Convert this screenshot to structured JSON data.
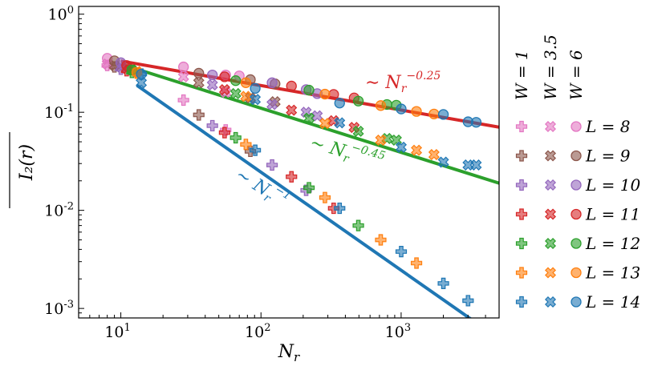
{
  "chart_data": {
    "type": "scatter",
    "xscale": "log",
    "yscale": "log",
    "xlim": [
      5,
      5000
    ],
    "ylim": [
      0.0008,
      1.2
    ],
    "xlabel_base": "N",
    "xlabel_sub": "r",
    "ylabel": "I₂(r)",
    "x_ticks": [
      {
        "value": 10,
        "base": "10",
        "exp": "1"
      },
      {
        "value": 100,
        "base": "10",
        "exp": "2"
      },
      {
        "value": 1000,
        "base": "10",
        "exp": "3"
      }
    ],
    "y_ticks": [
      {
        "value": 1,
        "base": "10",
        "exp": "0"
      },
      {
        "value": 0.1,
        "base": "10",
        "exp": "-1"
      },
      {
        "value": 0.01,
        "base": "10",
        "exp": "-2"
      },
      {
        "value": 0.001,
        "base": "10",
        "exp": "-3"
      }
    ],
    "fit_lines": [
      {
        "exponent": -0.25,
        "color": "#d62728",
        "anchor": [
          10,
          0.333
        ],
        "x_range": [
          10,
          5000
        ],
        "label_prefix": "∼ N",
        "label_sub": "r",
        "label_exp": "−0.25"
      },
      {
        "exponent": -0.45,
        "color": "#2ca02c",
        "anchor": [
          10,
          0.31
        ],
        "x_range": [
          10,
          5000
        ],
        "label_prefix": "∼ N",
        "label_sub": "r",
        "label_exp": "−0.45"
      },
      {
        "exponent": -1,
        "color": "#1f77b4",
        "anchor": [
          10,
          0.245
        ],
        "x_range": [
          13,
          5000
        ],
        "label_prefix": "∼ N",
        "label_sub": "r",
        "label_exp": "−1"
      }
    ],
    "legend": {
      "columns": [
        {
          "W": "1",
          "label": "W = 1",
          "marker": "plus"
        },
        {
          "W": "3.5",
          "label": "W = 3.5",
          "marker": "cross"
        },
        {
          "W": "6",
          "label": "W = 6",
          "marker": "circle"
        }
      ],
      "rows": [
        {
          "L": "8",
          "label": "L = 8",
          "color": "#e377c2"
        },
        {
          "L": "9",
          "label": "L = 9",
          "color": "#8c564b"
        },
        {
          "L": "10",
          "label": "L = 10",
          "color": "#9467bd"
        },
        {
          "L": "11",
          "label": "L = 11",
          "color": "#d62728"
        },
        {
          "L": "12",
          "label": "L = 12",
          "color": "#2ca02c"
        },
        {
          "L": "13",
          "label": "L = 13",
          "color": "#ff7f0e"
        },
        {
          "L": "14",
          "label": "L = 14",
          "color": "#1f77b4"
        }
      ]
    },
    "series": [
      {
        "W": "1",
        "L": "8",
        "marker": "plus",
        "color": "#e377c2",
        "x": [
          8,
          28,
          56
        ],
        "y": [
          0.3,
          0.133,
          0.066
        ]
      },
      {
        "W": "1",
        "L": "9",
        "marker": "plus",
        "color": "#8c564b",
        "x": [
          9,
          36,
          84
        ],
        "y": [
          0.29,
          0.094,
          0.04
        ]
      },
      {
        "W": "1",
        "L": "10",
        "marker": "plus",
        "color": "#9467bd",
        "x": [
          10,
          45,
          120,
          210
        ],
        "y": [
          0.275,
          0.073,
          0.029,
          0.016
        ]
      },
      {
        "W": "1",
        "L": "11",
        "marker": "plus",
        "color": "#d62728",
        "x": [
          11,
          55,
          165,
          330
        ],
        "y": [
          0.265,
          0.062,
          0.022,
          0.0105
        ]
      },
      {
        "W": "1",
        "L": "12",
        "marker": "plus",
        "color": "#2ca02c",
        "x": [
          12,
          66,
          220,
          495
        ],
        "y": [
          0.255,
          0.055,
          0.017,
          0.007
        ]
      },
      {
        "W": "1",
        "L": "13",
        "marker": "plus",
        "color": "#ff7f0e",
        "x": [
          13,
          78,
          286,
          715,
          1287
        ],
        "y": [
          0.25,
          0.047,
          0.0135,
          0.005,
          0.0029
        ]
      },
      {
        "W": "1",
        "L": "14",
        "marker": "plus",
        "color": "#1f77b4",
        "x": [
          14,
          91,
          364,
          1001,
          2002,
          3003
        ],
        "y": [
          0.245,
          0.041,
          0.0105,
          0.0038,
          0.0018,
          0.0012
        ]
      },
      {
        "W": "3.5",
        "L": "8",
        "marker": "cross",
        "color": "#e377c2",
        "x": [
          8,
          28,
          56
        ],
        "y": [
          0.31,
          0.23,
          0.16
        ]
      },
      {
        "W": "3.5",
        "L": "9",
        "marker": "cross",
        "color": "#8c564b",
        "x": [
          9,
          36,
          84,
          126
        ],
        "y": [
          0.3,
          0.2,
          0.14,
          0.128
        ]
      },
      {
        "W": "3.5",
        "L": "10",
        "marker": "cross",
        "color": "#9467bd",
        "x": [
          10,
          45,
          120,
          210,
          252
        ],
        "y": [
          0.29,
          0.19,
          0.12,
          0.1,
          0.092
        ]
      },
      {
        "W": "3.5",
        "L": "11",
        "marker": "cross",
        "color": "#d62728",
        "x": [
          11,
          55,
          165,
          330,
          462
        ],
        "y": [
          0.28,
          0.17,
          0.105,
          0.082,
          0.07
        ]
      },
      {
        "W": "3.5",
        "L": "12",
        "marker": "cross",
        "color": "#2ca02c",
        "x": [
          12,
          66,
          220,
          495,
          792,
          924
        ],
        "y": [
          0.27,
          0.155,
          0.087,
          0.064,
          0.054,
          0.052
        ]
      },
      {
        "W": "3.5",
        "L": "13",
        "marker": "cross",
        "color": "#ff7f0e",
        "x": [
          13,
          78,
          286,
          715,
          1287,
          1716
        ],
        "y": [
          0.26,
          0.145,
          0.077,
          0.052,
          0.041,
          0.037
        ]
      },
      {
        "W": "3.5",
        "L": "14",
        "marker": "cross",
        "color": "#1f77b4",
        "x": [
          14,
          91,
          364,
          1001,
          2002,
          3003,
          3432
        ],
        "y": [
          0.2,
          0.135,
          0.078,
          0.044,
          0.031,
          0.029,
          0.029
        ]
      },
      {
        "W": "6",
        "L": "8",
        "marker": "circle",
        "color": "#e377c2",
        "x": [
          8,
          28,
          56,
          70
        ],
        "y": [
          0.355,
          0.29,
          0.24,
          0.235
        ]
      },
      {
        "W": "6",
        "L": "9",
        "marker": "circle",
        "color": "#8c564b",
        "x": [
          9,
          36,
          84,
          126
        ],
        "y": [
          0.335,
          0.25,
          0.215,
          0.195
        ]
      },
      {
        "W": "6",
        "L": "10",
        "marker": "circle",
        "color": "#9467bd",
        "x": [
          10,
          45,
          120,
          210,
          252
        ],
        "y": [
          0.32,
          0.24,
          0.2,
          0.17,
          0.155
        ]
      },
      {
        "W": "6",
        "L": "11",
        "marker": "circle",
        "color": "#d62728",
        "x": [
          11,
          55,
          165,
          330,
          462
        ],
        "y": [
          0.3,
          0.23,
          0.185,
          0.152,
          0.14
        ]
      },
      {
        "W": "6",
        "L": "12",
        "marker": "circle",
        "color": "#2ca02c",
        "x": [
          12,
          66,
          220,
          495,
          792,
          924
        ],
        "y": [
          0.27,
          0.21,
          0.168,
          0.13,
          0.12,
          0.118
        ]
      },
      {
        "W": "6",
        "L": "13",
        "marker": "circle",
        "color": "#ff7f0e",
        "x": [
          13,
          78,
          286,
          715,
          1287,
          1716
        ],
        "y": [
          0.255,
          0.2,
          0.153,
          0.117,
          0.102,
          0.096
        ]
      },
      {
        "W": "6",
        "L": "14",
        "marker": "circle",
        "color": "#1f77b4",
        "x": [
          14,
          91,
          364,
          1001,
          2002,
          3003,
          3432
        ],
        "y": [
          0.245,
          0.175,
          0.124,
          0.108,
          0.095,
          0.08,
          0.079
        ]
      }
    ]
  }
}
